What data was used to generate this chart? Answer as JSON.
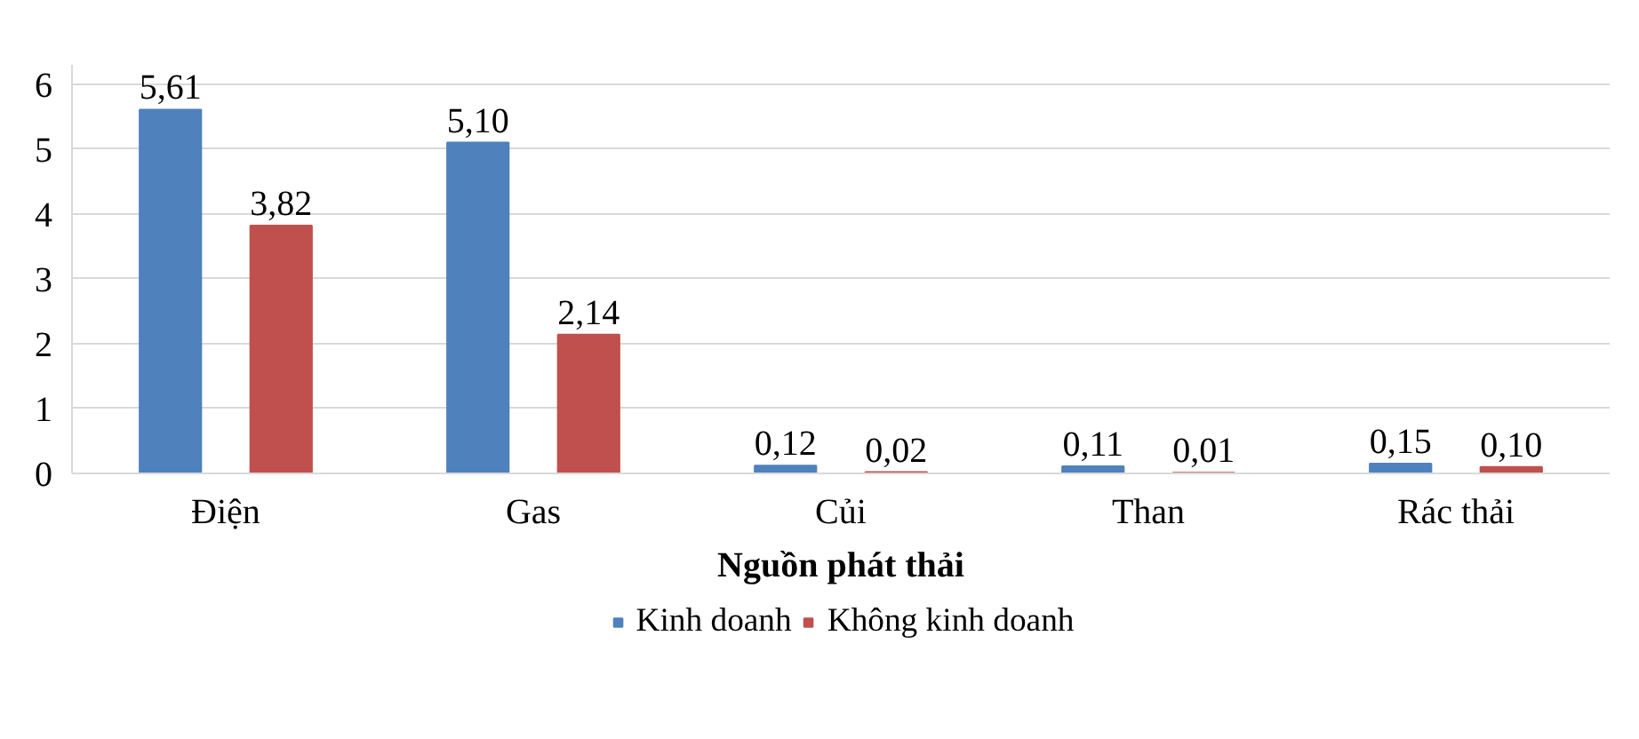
{
  "chart_data": {
    "type": "bar",
    "xlabel": "Nguồn phát thải",
    "categories": [
      "Điện",
      "Gas",
      "Củi",
      "Than",
      "Rác thải"
    ],
    "series": [
      {
        "name": "Kinh doanh",
        "color": "#4f81bd",
        "values": [
          5.61,
          5.1,
          0.12,
          0.11,
          0.15
        ],
        "value_labels": [
          "5,61",
          "5,10",
          "0,12",
          "0,11",
          "0,15"
        ]
      },
      {
        "name": "Không kinh doanh",
        "color": "#c0504d",
        "values": [
          3.82,
          2.14,
          0.02,
          0.01,
          0.1
        ],
        "value_labels": [
          "3,82",
          "2,14",
          "0,02",
          "0,01",
          "0,10"
        ]
      }
    ],
    "ylim": [
      0,
      6.3
    ],
    "yticks": [
      0,
      1,
      2,
      3,
      4,
      5,
      6
    ],
    "grid": "y",
    "legend": "bottom"
  }
}
